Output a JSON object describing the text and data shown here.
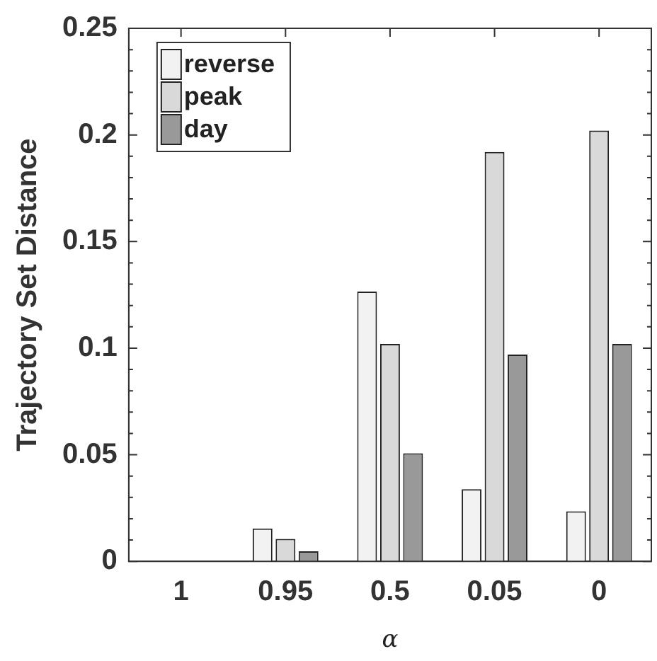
{
  "chart_data": {
    "type": "bar",
    "xlabel": "α",
    "ylabel": "Trajectory Set Distance",
    "categories": [
      "1",
      "0.95",
      "0.5",
      "0.05",
      "0"
    ],
    "series": [
      {
        "name": "reverse",
        "color": "#f2f2f2",
        "values": [
          null,
          0.0154,
          0.1265,
          0.0338,
          0.0235
        ]
      },
      {
        "name": "peak",
        "color": "#d9d9d9",
        "values": [
          null,
          0.0105,
          0.102,
          0.192,
          0.202
        ]
      },
      {
        "name": "day",
        "color": "#999999",
        "values": [
          null,
          0.0047,
          0.0507,
          0.097,
          0.102
        ]
      }
    ],
    "ylim": [
      0,
      0.25
    ],
    "yticks": [
      0,
      {
        "value": 0.01,
        "label": null
      },
      {
        "value": 0.02,
        "label": null
      },
      {
        "value": 0.03,
        "label": null
      },
      {
        "value": 0.04,
        "label": null
      },
      0.05,
      {
        "value": 0.06,
        "label": null
      },
      {
        "value": 0.07,
        "label": null
      },
      {
        "value": 0.08,
        "label": null
      },
      {
        "value": 0.09,
        "label": null
      },
      0.1,
      {
        "value": 0.11,
        "label": null
      },
      {
        "value": 0.12,
        "label": null
      },
      {
        "value": 0.13,
        "label": null
      },
      {
        "value": 0.14,
        "label": null
      },
      0.15,
      {
        "value": 0.16,
        "label": null
      },
      {
        "value": 0.17,
        "label": null
      },
      {
        "value": 0.18,
        "label": null
      },
      {
        "value": 0.19,
        "label": null
      },
      0.2,
      {
        "value": 0.21,
        "label": null
      },
      {
        "value": 0.22,
        "label": null
      },
      {
        "value": 0.23,
        "label": null
      },
      {
        "value": 0.24,
        "label": null
      },
      0.25
    ],
    "grid": false,
    "legend": "top left"
  }
}
